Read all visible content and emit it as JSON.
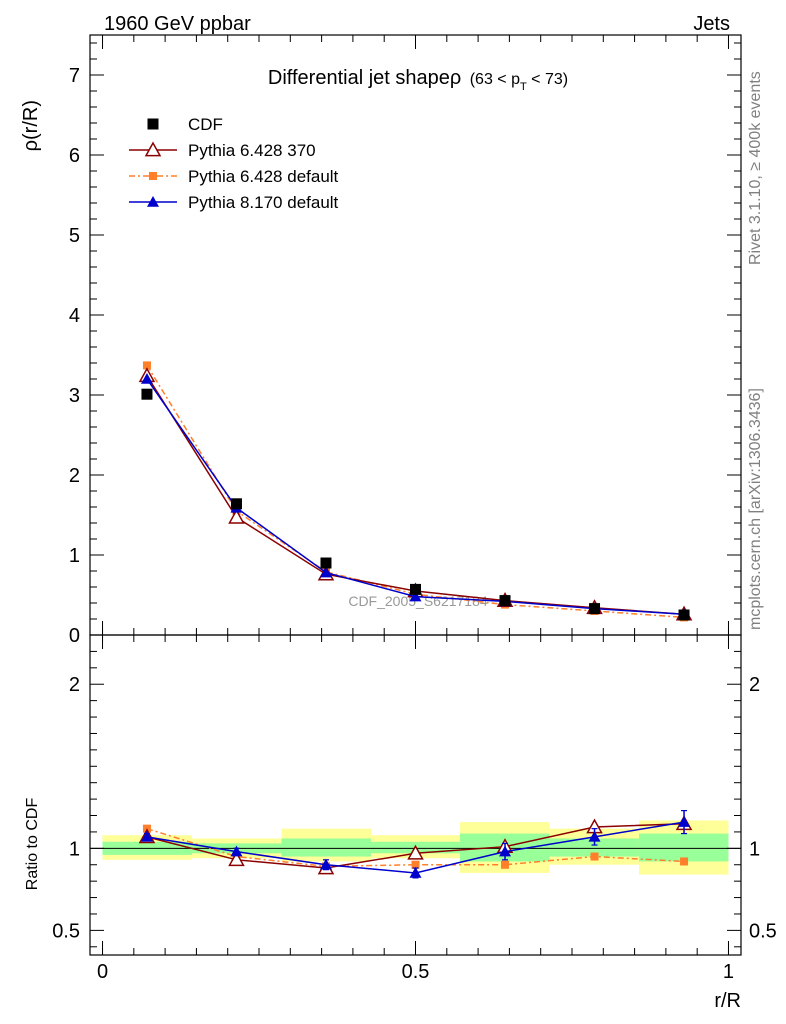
{
  "header": {
    "left": "1960 GeV ppbar",
    "right": "Jets"
  },
  "side_labels": {
    "rivet": "Rivet 3.1.10, ≥ 400k events",
    "mcplots": "mcplots.cern.ch [arXiv:1306.3436]"
  },
  "watermark": "CDF_2005_S6217184",
  "chart_data": {
    "type": "line",
    "title": "Differential jet shapeρ",
    "subtitle": "(63 < p_T < 73)",
    "subtitle_parts": {
      "open": "(63 < p",
      "sub": "T",
      "close": " < 73)"
    },
    "xlabel": "r/R",
    "ylabel_main": "ρ(r/R)",
    "ylabel_ratio": "Ratio to CDF",
    "xlim": [
      -0.02,
      1.02
    ],
    "ylim_main": [
      0,
      7.5
    ],
    "ylim_ratio": [
      0.35,
      2.3
    ],
    "x_ticks": [
      0,
      0.5,
      1
    ],
    "x_tick_labels": [
      "0",
      "0.5",
      "1"
    ],
    "y_ticks_main": [
      0,
      1,
      2,
      3,
      4,
      5,
      6,
      7
    ],
    "y_tick_labels_main": [
      "0",
      "1",
      "2",
      "3",
      "4",
      "5",
      "6",
      "7"
    ],
    "y_ticks_ratio": [
      0.5,
      1,
      2
    ],
    "y_tick_labels_ratio": [
      "0.5",
      "1",
      "2"
    ],
    "legend_position": "top-left",
    "x": [
      0.071,
      0.214,
      0.357,
      0.5,
      0.643,
      0.786,
      0.929
    ],
    "bin_edges": [
      0,
      0.143,
      0.286,
      0.429,
      0.571,
      0.714,
      0.857,
      1.0
    ],
    "series": [
      {
        "name": "CDF",
        "color": "#000000",
        "marker": "square",
        "values": [
          3.01,
          1.64,
          0.9,
          0.57,
          0.43,
          0.33,
          0.25
        ],
        "ratio": [
          1,
          1,
          1,
          1,
          1,
          1,
          1
        ],
        "band_inner": [
          [
            0.96,
            1.04
          ],
          [
            0.97,
            1.03
          ],
          [
            0.95,
            1.06
          ],
          [
            0.97,
            1.04
          ],
          [
            0.92,
            1.09
          ],
          [
            0.95,
            1.06
          ],
          [
            0.92,
            1.09
          ]
        ],
        "band_outer": [
          [
            0.93,
            1.08
          ],
          [
            0.94,
            1.06
          ],
          [
            0.92,
            1.12
          ],
          [
            0.94,
            1.08
          ],
          [
            0.85,
            1.16
          ],
          [
            0.9,
            1.12
          ],
          [
            0.84,
            1.17
          ]
        ]
      },
      {
        "name": "Pythia 6.428 370",
        "color": "#8b0000",
        "marker": "triangle-open",
        "values": [
          3.24,
          1.47,
          0.76,
          0.55,
          0.43,
          0.34,
          0.26
        ],
        "ratio": [
          1.07,
          0.93,
          0.88,
          0.97,
          1.01,
          1.13,
          1.15
        ]
      },
      {
        "name": "Pythia 6.428 default",
        "color": "#ff7f2a",
        "marker": "square-small",
        "dashed": true,
        "values": [
          3.37,
          1.55,
          0.79,
          0.51,
          0.38,
          0.3,
          0.22
        ],
        "ratio": [
          1.12,
          0.95,
          0.89,
          0.9,
          0.9,
          0.95,
          0.92
        ],
        "err": [
          0.01,
          0.01,
          0.01,
          0.02,
          0.02,
          0.02,
          0.02
        ]
      },
      {
        "name": "Pythia 8.170 default",
        "color": "#0000cc",
        "marker": "triangle",
        "values": [
          3.2,
          1.59,
          0.78,
          0.48,
          0.42,
          0.33,
          0.26
        ],
        "ratio": [
          1.07,
          0.98,
          0.9,
          0.85,
          0.98,
          1.07,
          1.16
        ],
        "err": [
          0.02,
          0.02,
          0.03,
          0.03,
          0.05,
          0.05,
          0.07
        ]
      }
    ]
  }
}
